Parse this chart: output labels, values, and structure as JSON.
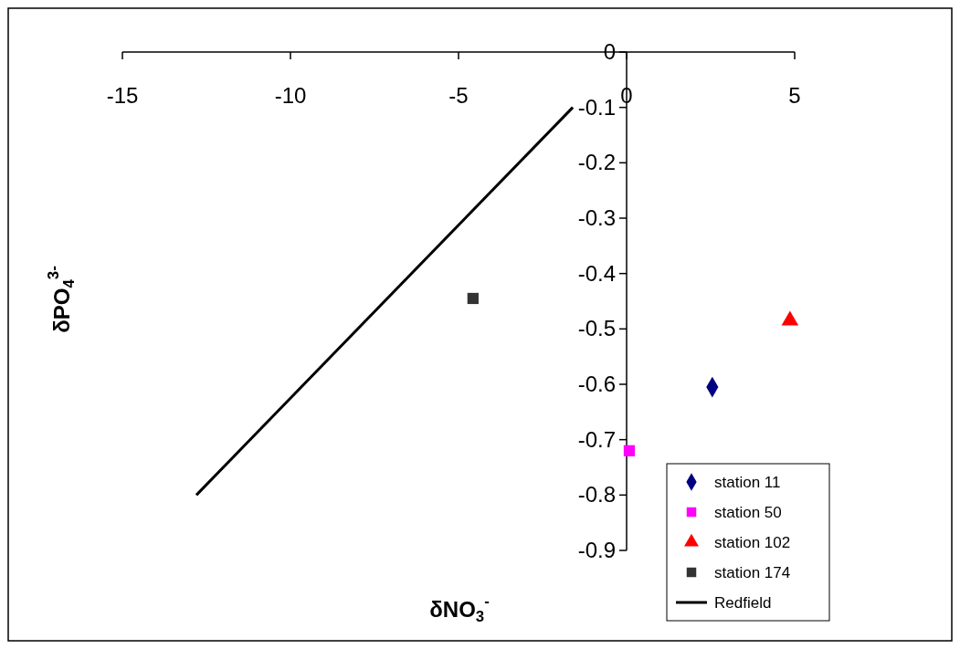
{
  "chart_data": {
    "type": "scatter",
    "xlabel": "δNO$_{3}$$^{-}$",
    "ylabel": "δPO$_{4}$$^{3-}$",
    "xlim": [
      -15,
      5
    ],
    "xticks": [
      -15,
      -10,
      -5,
      0,
      5
    ],
    "ylim": [
      -0.9,
      0
    ],
    "yticks": [
      -0.9,
      -0.8,
      -0.7,
      -0.6,
      -0.5,
      -0.4,
      -0.3,
      -0.2,
      -0.1,
      0
    ],
    "legend": "bottom right",
    "grid": false,
    "series": [
      {
        "name": "station 11",
        "color": "#000080",
        "marker": "diamond",
        "x": [
          2.55
        ],
        "values": [
          -0.605
        ]
      },
      {
        "name": "station 50",
        "color": "#ff00ff",
        "marker": "square",
        "x": [
          0.08
        ],
        "values": [
          -0.72
        ]
      },
      {
        "name": "station 102",
        "color": "#ff0000",
        "marker": "triangle",
        "x": [
          4.86
        ],
        "values": [
          -0.485
        ]
      },
      {
        "name": "station 174",
        "color": "#333333",
        "marker": "square",
        "x": [
          -4.57
        ],
        "values": [
          -0.445
        ]
      },
      {
        "name": "Redfield",
        "type": "line",
        "color": "#000000",
        "marker": "none",
        "line_style": "solid",
        "x": [
          -12.8,
          -1.6
        ],
        "values": [
          -0.8,
          -0.1
        ]
      }
    ]
  }
}
